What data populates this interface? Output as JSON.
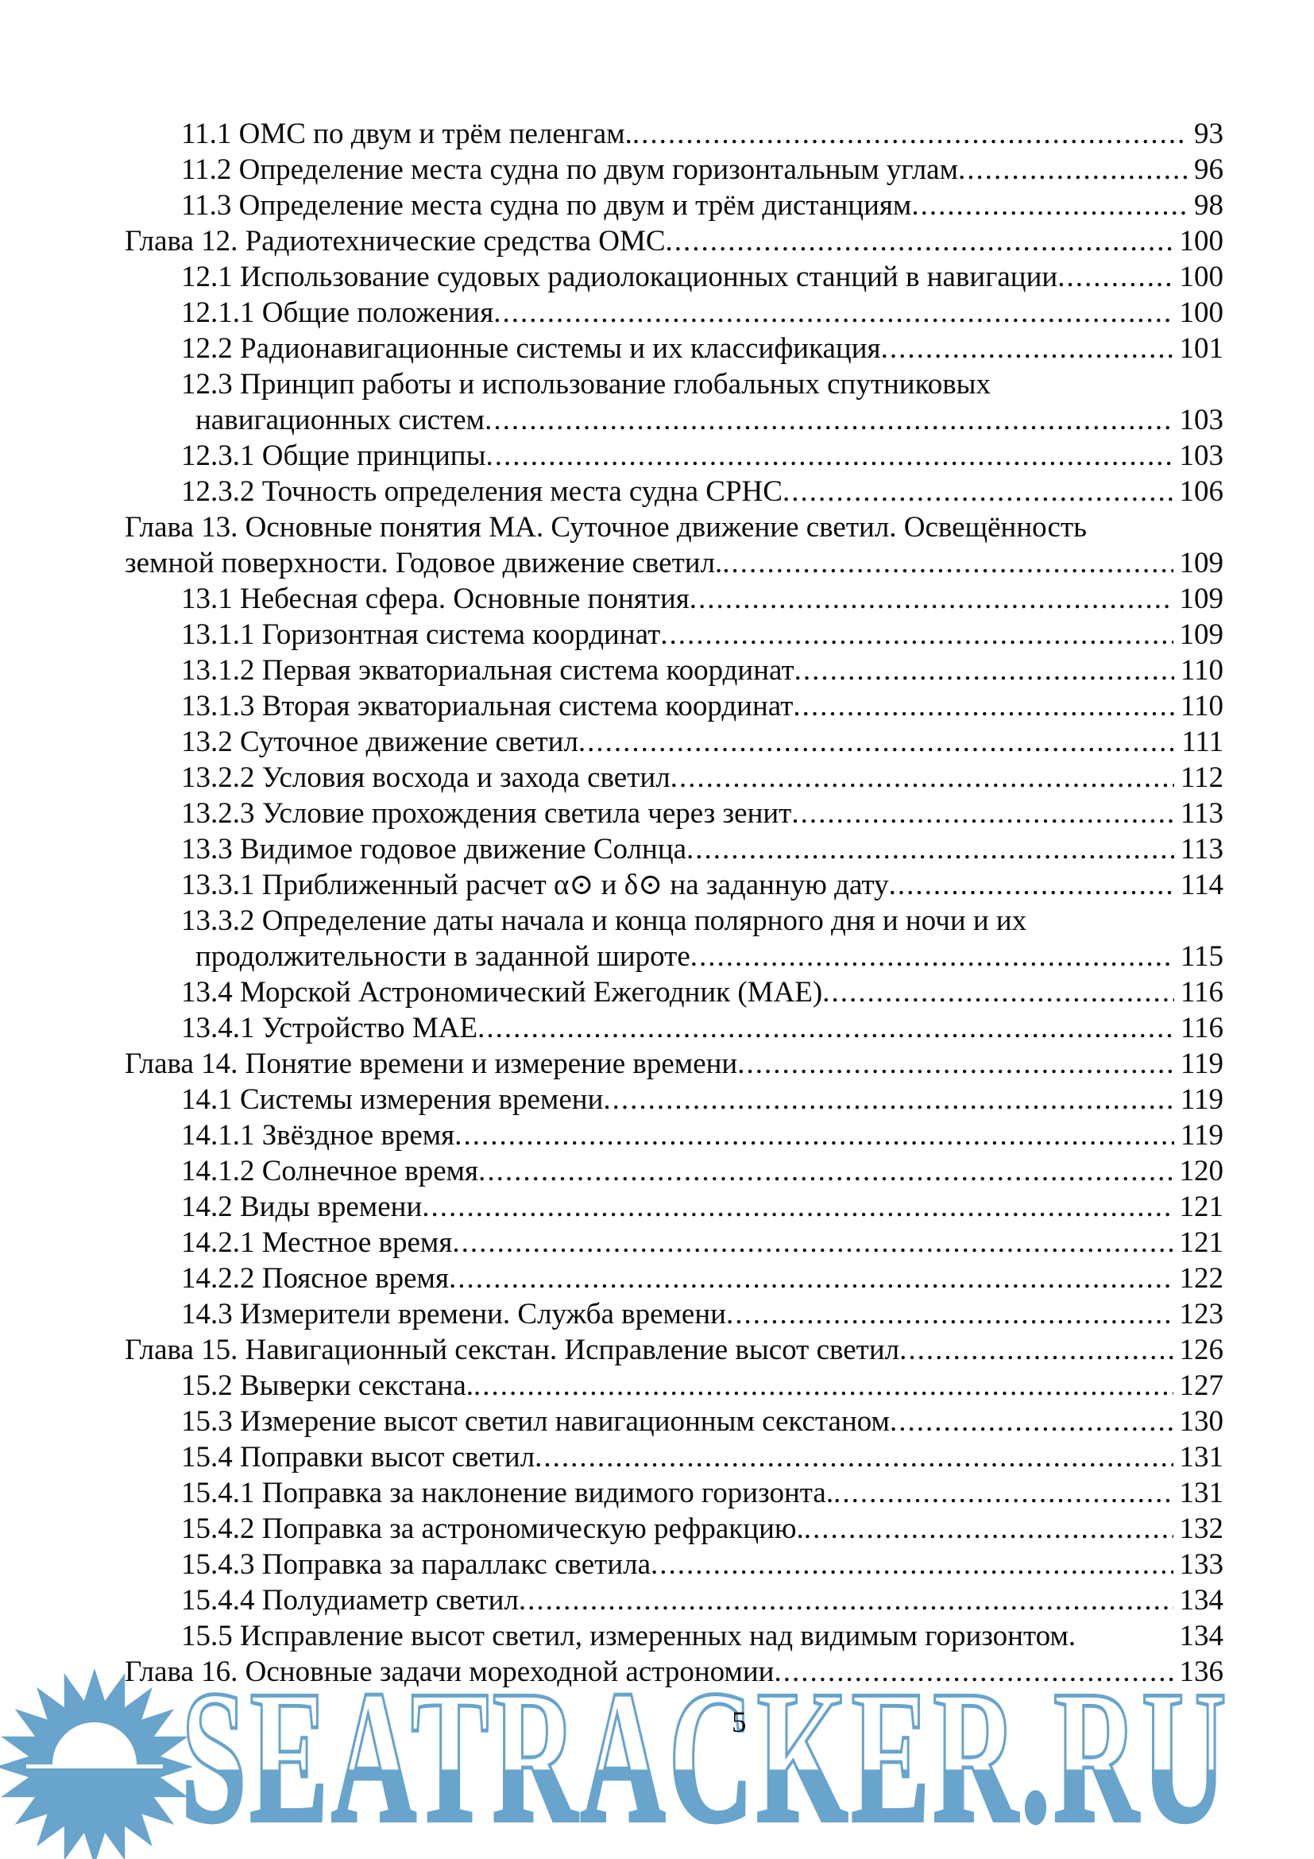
{
  "page": {
    "number": "5",
    "background": "#ffffff",
    "text_color": "#0b0b0b"
  },
  "watermark": {
    "text": "SEATRACKER.RU",
    "color": "#68a4cc",
    "logo": "sun-over-sea"
  },
  "toc": {
    "rows": [
      {
        "ind": 1,
        "text": "11.1 ОМС по двум и трём пеленгам.",
        "page": "93",
        "dots": true
      },
      {
        "ind": 1,
        "text": "11.2 Определение места судна по двум горизонтальным углам",
        "page": "96",
        "dots": true
      },
      {
        "ind": 1,
        "text": "11.3 Определение места судна по двум и трём дистанциям",
        "page": "98",
        "dots": true
      },
      {
        "ind": 0,
        "text": "Глава 12. Радиотехнические средства ОМС",
        "page": "100",
        "dots": true
      },
      {
        "ind": 1,
        "text": "12.1 Использование судовых радиолокационных станций в навигации",
        "page": "100",
        "dots": true
      },
      {
        "ind": 1,
        "text": "12.1.1 Общие положения",
        "page": "100",
        "dots": true
      },
      {
        "ind": 1,
        "text": "12.2 Радионавигационные системы и их классификация",
        "page": "101",
        "dots": true
      },
      {
        "ind": 1,
        "text": "12.3 Принцип работы и использование глобальных спутниковых",
        "page": null,
        "dots": false
      },
      {
        "ind": 2,
        "text": "навигационных систем",
        "page": "103",
        "dots": true
      },
      {
        "ind": 1,
        "text": "12.3.1 Общие принципы",
        "page": "103",
        "dots": true
      },
      {
        "ind": 1,
        "text": "12.3.2 Точность определения места судна СРНС",
        "page": "106",
        "dots": true
      },
      {
        "ind": 0,
        "text": "Глава 13. Основные понятия МА. Суточное движение светил. Освещённость",
        "page": null,
        "dots": false
      },
      {
        "ind": 0,
        "text": "земной поверхности. Годовое движение светил.",
        "page": "109",
        "dots": true
      },
      {
        "ind": 1,
        "text": "13.1 Небесная сфера. Основные понятия",
        "page": "109",
        "dots": true
      },
      {
        "ind": 1,
        "text": "13.1.1 Горизонтная система координат",
        "page": "109",
        "dots": true
      },
      {
        "ind": 1,
        "text": "13.1.2 Первая экваториальная система координат",
        "page": "110",
        "dots": true
      },
      {
        "ind": 1,
        "text": "13.1.3 Вторая экваториальная система координат",
        "page": "110",
        "dots": true
      },
      {
        "ind": 1,
        "text": "13.2 Суточное движение светил",
        "page": "111",
        "dots": true
      },
      {
        "ind": 1,
        "text": "13.2.2 Условия восхода и захода светил",
        "page": "112",
        "dots": true
      },
      {
        "ind": 1,
        "text": "13.2.3 Условие прохождения светила через зенит",
        "page": "113",
        "dots": true
      },
      {
        "ind": 1,
        "text": "13.3 Видимое годовое движение Солнца",
        "page": "113",
        "dots": true
      },
      {
        "ind": 1,
        "text": "13.3.1 Приближенный расчет α⊙ и δ⊙ на заданную дату",
        "page": "114",
        "dots": true
      },
      {
        "ind": 1,
        "text": "13.3.2 Определение даты начала и конца полярного дня и ночи и их",
        "page": null,
        "dots": false
      },
      {
        "ind": 2,
        "text": "продолжительности в заданной широте",
        "page": "115",
        "dots": true
      },
      {
        "ind": 1,
        "text": "13.4 Морской Астрономический Ежегодник (МАЕ)",
        "page": "116",
        "dots": true
      },
      {
        "ind": 1,
        "text": "13.4.1 Устройство МАЕ",
        "page": "116",
        "dots": true
      },
      {
        "ind": 0,
        "text": "Глава 14. Понятие времени и измерение времени",
        "page": "119",
        "dots": true
      },
      {
        "ind": 1,
        "text": "14.1 Системы измерения времени",
        "page": "119",
        "dots": true
      },
      {
        "ind": 1,
        "text": "14.1.1 Звёздное время",
        "page": "119",
        "dots": true
      },
      {
        "ind": 1,
        "text": "14.1.2 Солнечное время",
        "page": "120",
        "dots": true
      },
      {
        "ind": 1,
        "text": "14.2 Виды времени",
        "page": "121",
        "dots": true
      },
      {
        "ind": 1,
        "text": "14.2.1 Местное время",
        "page": "121",
        "dots": true
      },
      {
        "ind": 1,
        "text": "14.2.2 Поясное время",
        "page": "122",
        "dots": true
      },
      {
        "ind": 1,
        "text": "14.3 Измерители времени. Служба времени",
        "page": "123",
        "dots": true
      },
      {
        "ind": 0,
        "text": "Глава 15. Навигационный секстан. Исправление высот светил",
        "page": "126",
        "dots": true
      },
      {
        "ind": 1,
        "text": "15.2 Выверки секстана.",
        "page": "127",
        "dots": true
      },
      {
        "ind": 1,
        "text": "15.3 Измерение высот светил навигационным секстаном",
        "page": "130",
        "dots": true
      },
      {
        "ind": 1,
        "text": "15.4 Поправки высот светил",
        "page": "131",
        "dots": true
      },
      {
        "ind": 1,
        "text": "15.4.1 Поправка за наклонение видимого горизонта.",
        "page": "131",
        "dots": true
      },
      {
        "ind": 1,
        "text": "15.4.2 Поправка за астрономическую рефракцию.",
        "page": "132",
        "dots": true
      },
      {
        "ind": 1,
        "text": "15.4.3 Поправка за параллакс светила",
        "page": "133",
        "dots": true
      },
      {
        "ind": 1,
        "text": "15.4.4 Полудиаметр светил",
        "page": "134",
        "dots": true
      },
      {
        "ind": 1,
        "text": "15.5 Исправление высот светил, измеренных над видимым горизонтом.",
        "page": "134",
        "dots": false
      },
      {
        "ind": 0,
        "text": "Глава 16. Основные задачи мореходной астрономии",
        "page": "136",
        "dots": true
      }
    ]
  }
}
